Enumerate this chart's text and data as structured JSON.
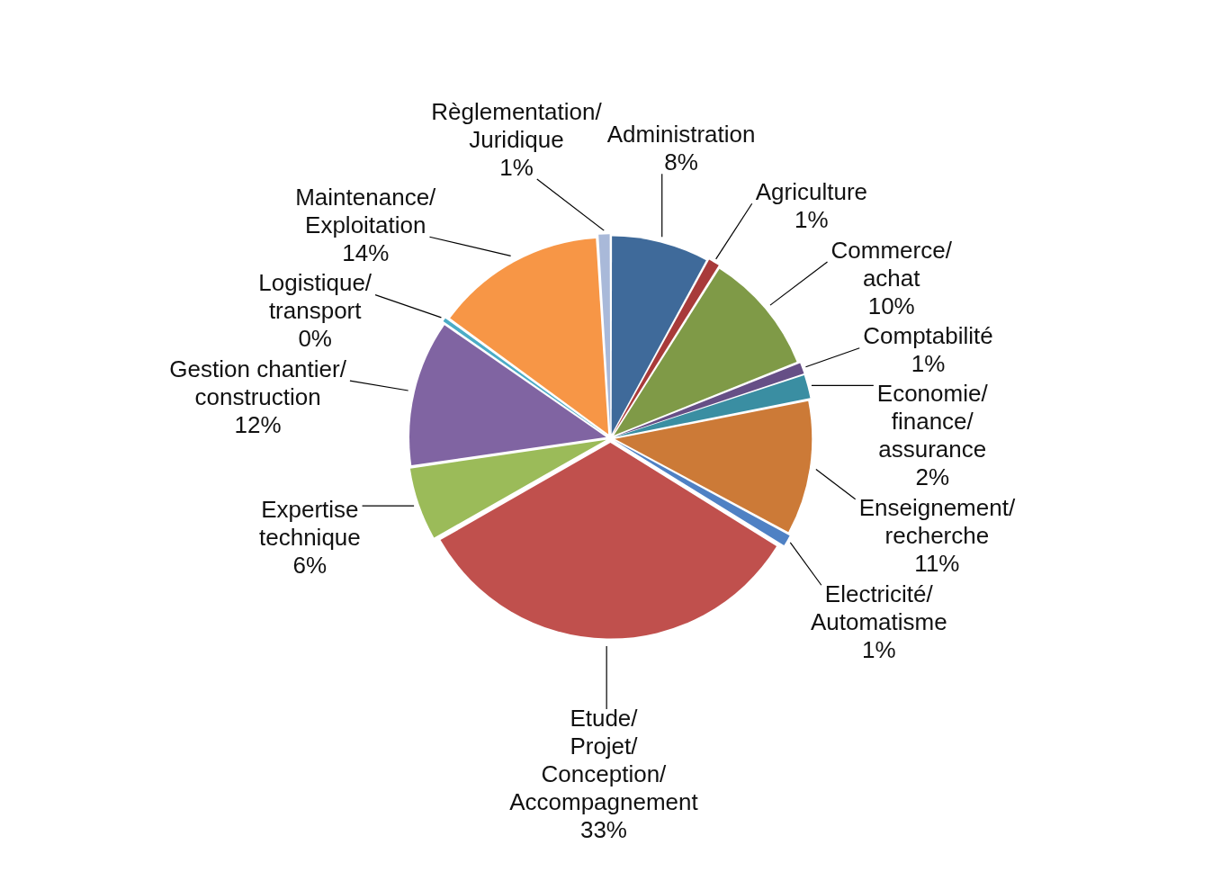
{
  "chart_data": {
    "type": "pie",
    "categories": [
      "Administration",
      "Agriculture",
      "Commerce/achat",
      "Comptabilité",
      "Economie/finance/assurance",
      "Enseignement/recherche",
      "Electricité/Automatisme",
      "Etude/Projet/Conception/Accompagnement",
      "Expertise technique",
      "Gestion chantier/construction",
      "Logistique/transport",
      "Maintenance/Exploitation",
      "Règlementation/Juridique"
    ],
    "values": [
      8,
      1,
      10,
      1,
      2,
      11,
      1,
      33,
      6,
      12,
      0.4,
      14,
      1
    ],
    "value_labels": [
      "8%",
      "1%",
      "10%",
      "1%",
      "2%",
      "11%",
      "1%",
      "33%",
      "6%",
      "12%",
      "0%",
      "14%",
      "1%"
    ],
    "colors": [
      "#3f6a9a",
      "#a83a3a",
      "#7f9a47",
      "#664f86",
      "#3a8ea2",
      "#cc7a37",
      "#4f81c4",
      "#c0504d",
      "#9bbb59",
      "#8064a2",
      "#4bacc6",
      "#f79646",
      "#a9b9d9"
    ],
    "legend": false
  }
}
